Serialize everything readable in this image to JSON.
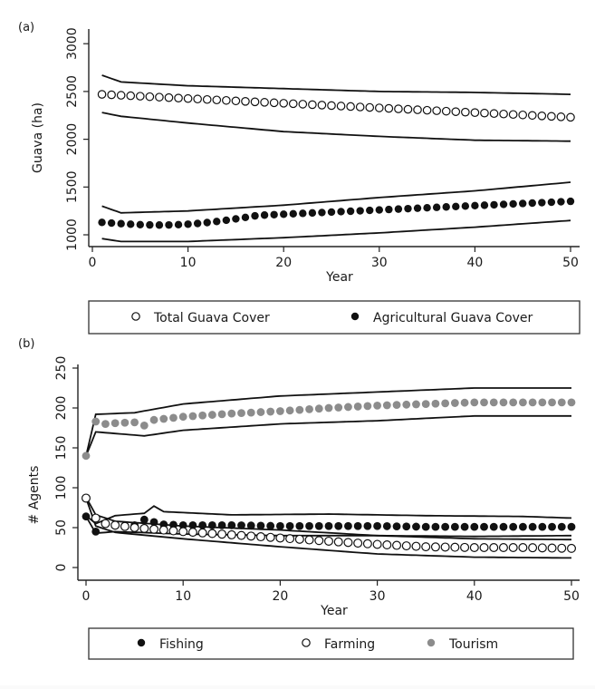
{
  "chart_data": [
    {
      "panel_label": "(a)",
      "type": "scatter",
      "xlabel": "Year",
      "ylabel": "Guava (ha)",
      "xlim": [
        0,
        50
      ],
      "ylim": [
        900,
        3000
      ],
      "x_ticks": [
        0,
        10,
        20,
        30,
        40,
        50
      ],
      "y_ticks": [
        1000,
        1500,
        2000,
        2500,
        3000
      ],
      "legend_position": "bottom",
      "series": [
        {
          "name": "Total Guava Cover",
          "marker": "open-circle",
          "color": "#111111",
          "x": [
            1,
            50
          ],
          "y": [
            2470,
            2230
          ],
          "upper": [
            [
              1,
              2670
            ],
            [
              3,
              2600
            ],
            [
              10,
              2560
            ],
            [
              20,
              2530
            ],
            [
              30,
              2500
            ],
            [
              40,
              2490
            ],
            [
              50,
              2470
            ]
          ],
          "lower": [
            [
              1,
              2280
            ],
            [
              3,
              2240
            ],
            [
              10,
              2170
            ],
            [
              20,
              2080
            ],
            [
              30,
              2030
            ],
            [
              40,
              1990
            ],
            [
              50,
              1980
            ]
          ]
        },
        {
          "name": "Agricultural Guava Cover",
          "marker": "filled-circle",
          "color": "#111111",
          "x": [
            1,
            50
          ],
          "y": [
            1130,
            1350
          ],
          "upper": [
            [
              1,
              1300
            ],
            [
              3,
              1230
            ],
            [
              10,
              1250
            ],
            [
              20,
              1310
            ],
            [
              30,
              1390
            ],
            [
              40,
              1460
            ],
            [
              50,
              1550
            ]
          ],
          "lower": [
            [
              1,
              960
            ],
            [
              3,
              930
            ],
            [
              10,
              930
            ],
            [
              20,
              970
            ],
            [
              30,
              1020
            ],
            [
              40,
              1080
            ],
            [
              50,
              1150
            ]
          ]
        }
      ]
    },
    {
      "panel_label": "(b)",
      "type": "scatter",
      "xlabel": "Year",
      "ylabel": "# Agents",
      "xlim": [
        0,
        50
      ],
      "ylim": [
        0,
        250
      ],
      "x_ticks": [
        0,
        10,
        20,
        30,
        40,
        50
      ],
      "y_ticks": [
        0,
        50,
        100,
        150,
        200,
        250
      ],
      "legend_position": "bottom",
      "series": [
        {
          "name": "Fishing",
          "marker": "filled-circle",
          "color": "#111111",
          "points": [
            [
              0,
              64
            ],
            [
              1,
              45
            ],
            [
              2,
              55
            ],
            [
              3,
              54
            ],
            [
              4,
              52
            ],
            [
              5,
              53
            ],
            [
              6,
              60
            ],
            [
              8,
              54
            ],
            [
              10,
              53
            ],
            [
              15,
              53
            ],
            [
              20,
              52
            ],
            [
              25,
              52
            ],
            [
              30,
              52
            ],
            [
              35,
              51
            ],
            [
              40,
              51
            ],
            [
              45,
              51
            ],
            [
              50,
              51
            ]
          ],
          "upper": [
            [
              0,
              65
            ],
            [
              1,
              55
            ],
            [
              3,
              65
            ],
            [
              6,
              68
            ],
            [
              7,
              77
            ],
            [
              8,
              70
            ],
            [
              15,
              66
            ],
            [
              25,
              67
            ],
            [
              35,
              65
            ],
            [
              45,
              64
            ],
            [
              50,
              62
            ]
          ],
          "lower": [
            [
              0,
              64
            ],
            [
              1,
              43
            ],
            [
              3,
              45
            ],
            [
              10,
              42
            ],
            [
              20,
              40
            ],
            [
              30,
              40
            ],
            [
              40,
              39
            ],
            [
              50,
              40
            ]
          ]
        },
        {
          "name": "Farming",
          "marker": "open-circle",
          "color": "#111111",
          "points": [
            [
              0,
              87
            ],
            [
              1,
              62
            ],
            [
              2,
              55
            ],
            [
              3,
              53
            ],
            [
              5,
              50
            ],
            [
              7,
              48
            ],
            [
              10,
              45
            ],
            [
              15,
              41
            ],
            [
              20,
              37
            ],
            [
              25,
              33
            ],
            [
              30,
              29
            ],
            [
              35,
              26
            ],
            [
              40,
              25
            ],
            [
              45,
              25
            ],
            [
              50,
              24
            ]
          ],
          "upper": [
            [
              0,
              88
            ],
            [
              1,
              66
            ],
            [
              3,
              58
            ],
            [
              10,
              52
            ],
            [
              20,
              47
            ],
            [
              30,
              40
            ],
            [
              40,
              36
            ],
            [
              50,
              35
            ]
          ],
          "lower": [
            [
              0,
              87
            ],
            [
              1,
              52
            ],
            [
              3,
              44
            ],
            [
              10,
              36
            ],
            [
              20,
              26
            ],
            [
              30,
              17
            ],
            [
              40,
              13
            ],
            [
              50,
              12
            ]
          ]
        },
        {
          "name": "Tourism",
          "marker": "filled-circle",
          "color": "#8c8c8c",
          "points": [
            [
              0,
              140
            ],
            [
              1,
              183
            ],
            [
              2,
              180
            ],
            [
              3,
              181
            ],
            [
              5,
              182
            ],
            [
              6,
              178
            ],
            [
              7,
              185
            ],
            [
              10,
              189
            ],
            [
              15,
              193
            ],
            [
              20,
              196
            ],
            [
              25,
              200
            ],
            [
              30,
              203
            ],
            [
              35,
              205
            ],
            [
              40,
              207
            ],
            [
              45,
              207
            ],
            [
              50,
              207
            ]
          ],
          "upper": [
            [
              0,
              140
            ],
            [
              1,
              192
            ],
            [
              5,
              194
            ],
            [
              10,
              205
            ],
            [
              20,
              215
            ],
            [
              30,
              220
            ],
            [
              40,
              225
            ],
            [
              50,
              225
            ]
          ],
          "lower": [
            [
              0,
              140
            ],
            [
              1,
              170
            ],
            [
              3,
              168
            ],
            [
              6,
              165
            ],
            [
              10,
              172
            ],
            [
              20,
              180
            ],
            [
              30,
              184
            ],
            [
              40,
              190
            ],
            [
              50,
              190
            ]
          ]
        }
      ]
    }
  ]
}
